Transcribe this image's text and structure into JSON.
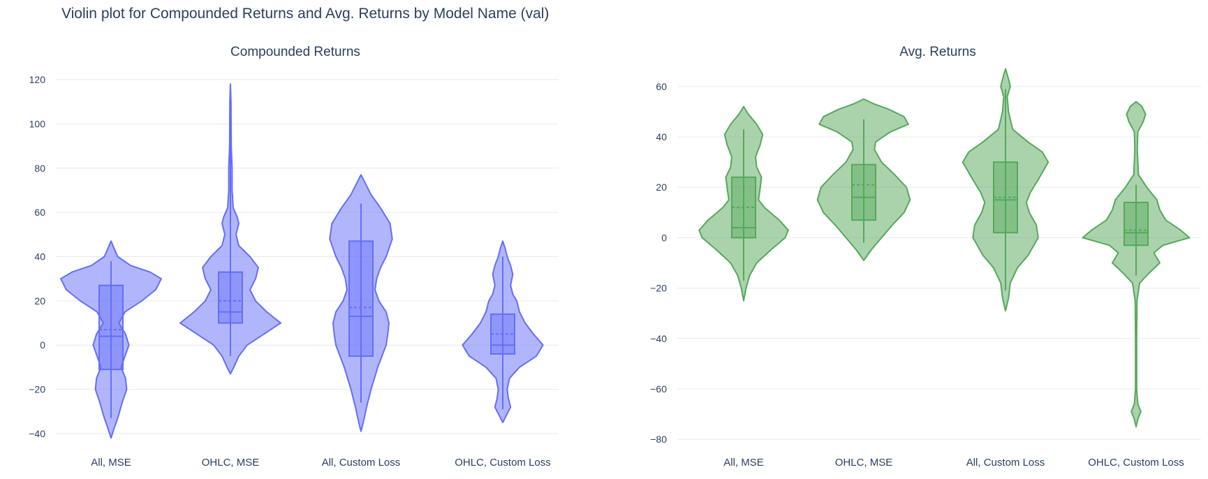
{
  "title": "Violin plot for Compounded Returns and Avg. Returns by Model Name (val)",
  "chart_data": [
    {
      "type": "violin",
      "title": "Compounded Returns",
      "categories": [
        "All, MSE",
        "OHLC, MSE",
        "All, Custom Loss",
        "OHLC, Custom Loss"
      ],
      "yticks": [
        -40,
        -20,
        0,
        20,
        40,
        60,
        80,
        100,
        120
      ],
      "ylim": [
        -46,
        126
      ],
      "color": "#636efa",
      "grid": true,
      "violins": [
        {
          "min": -33,
          "q1": -11,
          "median": 4,
          "mean": 7,
          "q3": 27,
          "max": 38,
          "profile": [
            [
              -42,
              0
            ],
            [
              -38,
              0.05
            ],
            [
              -33,
              0.12
            ],
            [
              -26,
              0.2
            ],
            [
              -20,
              0.28
            ],
            [
              -15,
              0.26
            ],
            [
              -10,
              0.18
            ],
            [
              -5,
              0.25
            ],
            [
              0,
              0.32
            ],
            [
              5,
              0.26
            ],
            [
              10,
              0.14
            ],
            [
              15,
              0.25
            ],
            [
              20,
              0.55
            ],
            [
              25,
              0.8
            ],
            [
              30,
              0.9
            ],
            [
              33,
              0.7
            ],
            [
              36,
              0.35
            ],
            [
              40,
              0.12
            ],
            [
              44,
              0.05
            ],
            [
              47,
              0
            ]
          ]
        },
        {
          "min": -5,
          "q1": 10,
          "median": 15,
          "mean": 20,
          "q3": 33,
          "max": 118,
          "profile": [
            [
              -13,
              0
            ],
            [
              -10,
              0.06
            ],
            [
              -5,
              0.15
            ],
            [
              0,
              0.3
            ],
            [
              5,
              0.6
            ],
            [
              10,
              0.9
            ],
            [
              15,
              0.65
            ],
            [
              20,
              0.45
            ],
            [
              25,
              0.35
            ],
            [
              30,
              0.45
            ],
            [
              35,
              0.5
            ],
            [
              40,
              0.35
            ],
            [
              45,
              0.15
            ],
            [
              50,
              0.1
            ],
            [
              55,
              0.15
            ],
            [
              58,
              0.12
            ],
            [
              62,
              0.05
            ],
            [
              70,
              0.03
            ],
            [
              80,
              0.03
            ],
            [
              90,
              0.015
            ],
            [
              100,
              0.012
            ],
            [
              110,
              0.01
            ],
            [
              118,
              0
            ]
          ]
        },
        {
          "min": -26,
          "q1": -5,
          "median": 13,
          "mean": 17,
          "q3": 47,
          "max": 64,
          "profile": [
            [
              -39,
              0
            ],
            [
              -35,
              0.04
            ],
            [
              -28,
              0.1
            ],
            [
              -20,
              0.18
            ],
            [
              -10,
              0.3
            ],
            [
              0,
              0.45
            ],
            [
              5,
              0.48
            ],
            [
              10,
              0.5
            ],
            [
              15,
              0.45
            ],
            [
              20,
              0.32
            ],
            [
              25,
              0.25
            ],
            [
              30,
              0.28
            ],
            [
              35,
              0.35
            ],
            [
              40,
              0.45
            ],
            [
              48,
              0.56
            ],
            [
              55,
              0.52
            ],
            [
              62,
              0.35
            ],
            [
              68,
              0.18
            ],
            [
              73,
              0.08
            ],
            [
              77,
              0
            ]
          ]
        },
        {
          "min": -29,
          "q1": -4,
          "median": 0,
          "mean": 5,
          "q3": 14,
          "max": 40,
          "profile": [
            [
              -35,
              0
            ],
            [
              -32,
              0.06
            ],
            [
              -28,
              0.14
            ],
            [
              -24,
              0.1
            ],
            [
              -20,
              0.08
            ],
            [
              -15,
              0.12
            ],
            [
              -10,
              0.3
            ],
            [
              -5,
              0.6
            ],
            [
              0,
              0.72
            ],
            [
              5,
              0.55
            ],
            [
              10,
              0.4
            ],
            [
              15,
              0.3
            ],
            [
              20,
              0.25
            ],
            [
              23,
              0.18
            ],
            [
              27,
              0.14
            ],
            [
              32,
              0.18
            ],
            [
              36,
              0.14
            ],
            [
              40,
              0.08
            ],
            [
              44,
              0.04
            ],
            [
              47,
              0
            ]
          ]
        }
      ]
    },
    {
      "type": "violin",
      "title": "Avg. Returns",
      "categories": [
        "All, MSE",
        "OHLC, MSE",
        "All, Custom Loss",
        "OHLC, Custom Loss"
      ],
      "yticks": [
        -80,
        -60,
        -40,
        -20,
        0,
        20,
        40,
        60
      ],
      "ylim": [
        -83,
        68
      ],
      "color": "#55a85a",
      "grid": true,
      "violins": [
        {
          "min": -17,
          "q1": 0,
          "median": 4,
          "mean": 12,
          "q3": 24,
          "max": 43,
          "profile": [
            [
              -25,
              0
            ],
            [
              -20,
              0.04
            ],
            [
              -15,
              0.1
            ],
            [
              -10,
              0.22
            ],
            [
              -5,
              0.45
            ],
            [
              0,
              0.7
            ],
            [
              3,
              0.75
            ],
            [
              7,
              0.6
            ],
            [
              12,
              0.35
            ],
            [
              15,
              0.25
            ],
            [
              20,
              0.28
            ],
            [
              24,
              0.3
            ],
            [
              28,
              0.22
            ],
            [
              32,
              0.2
            ],
            [
              37,
              0.28
            ],
            [
              41,
              0.32
            ],
            [
              45,
              0.22
            ],
            [
              49,
              0.08
            ],
            [
              52,
              0
            ]
          ]
        },
        {
          "min": -2,
          "q1": 7,
          "median": 16,
          "mean": 21,
          "q3": 29,
          "max": 47,
          "profile": [
            [
              -9,
              0
            ],
            [
              -5,
              0.12
            ],
            [
              0,
              0.3
            ],
            [
              5,
              0.48
            ],
            [
              10,
              0.68
            ],
            [
              15,
              0.78
            ],
            [
              20,
              0.72
            ],
            [
              25,
              0.52
            ],
            [
              30,
              0.3
            ],
            [
              35,
              0.18
            ],
            [
              38,
              0.2
            ],
            [
              42,
              0.45
            ],
            [
              45,
              0.75
            ],
            [
              48,
              0.68
            ],
            [
              51,
              0.42
            ],
            [
              53,
              0.18
            ],
            [
              55,
              0
            ]
          ]
        },
        {
          "min": -21,
          "q1": 2,
          "median": 15,
          "mean": 16,
          "q3": 30,
          "max": 59,
          "profile": [
            [
              -29,
              0
            ],
            [
              -24,
              0.05
            ],
            [
              -18,
              0.08
            ],
            [
              -12,
              0.2
            ],
            [
              -7,
              0.38
            ],
            [
              0,
              0.55
            ],
            [
              5,
              0.52
            ],
            [
              10,
              0.4
            ],
            [
              14,
              0.35
            ],
            [
              18,
              0.42
            ],
            [
              23,
              0.55
            ],
            [
              30,
              0.72
            ],
            [
              34,
              0.62
            ],
            [
              38,
              0.38
            ],
            [
              43,
              0.12
            ],
            [
              50,
              0.05
            ],
            [
              56,
              0.03
            ],
            [
              60,
              0.08
            ],
            [
              63,
              0.05
            ],
            [
              67,
              0
            ]
          ]
        },
        {
          "min": -15,
          "q1": -3,
          "median": 2,
          "mean": 3,
          "q3": 14,
          "max": 21,
          "profile": [
            [
              -75,
              0
            ],
            [
              -72,
              0.03
            ],
            [
              -69,
              0.08
            ],
            [
              -66,
              0.03
            ],
            [
              -60,
              0.01
            ],
            [
              -40,
              0.01
            ],
            [
              -25,
              0.015
            ],
            [
              -18,
              0.06
            ],
            [
              -14,
              0.22
            ],
            [
              -10,
              0.4
            ],
            [
              -6,
              0.3
            ],
            [
              -3,
              0.45
            ],
            [
              0,
              0.9
            ],
            [
              3,
              0.75
            ],
            [
              7,
              0.5
            ],
            [
              11,
              0.4
            ],
            [
              15,
              0.35
            ],
            [
              20,
              0.18
            ],
            [
              25,
              0.04
            ],
            [
              35,
              0.02
            ],
            [
              42,
              0.03
            ],
            [
              46,
              0.12
            ],
            [
              49,
              0.16
            ],
            [
              52,
              0.1
            ],
            [
              54,
              0
            ]
          ]
        }
      ]
    }
  ]
}
